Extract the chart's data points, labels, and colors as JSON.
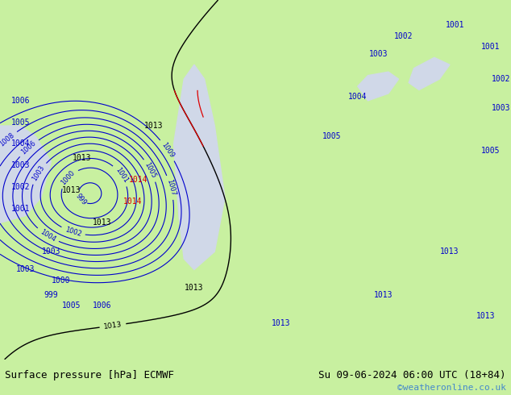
{
  "title_left": "Surface pressure [hPa] ECMWF",
  "title_right": "Su 09-06-2024 06:00 UTC (18+84)",
  "watermark": "©weatheronline.co.uk",
  "background_color": "#c8f0a0",
  "water_color": "#d0d8e8",
  "bottom_bar_color": "#ffffff",
  "text_color_left": "#000000",
  "text_color_right": "#000000",
  "text_color_watermark": "#4488cc",
  "contour_blue": "#0000cc",
  "contour_black": "#000000",
  "contour_red": "#dd0000",
  "fig_width": 6.34,
  "fig_height": 4.9,
  "dpi": 100
}
